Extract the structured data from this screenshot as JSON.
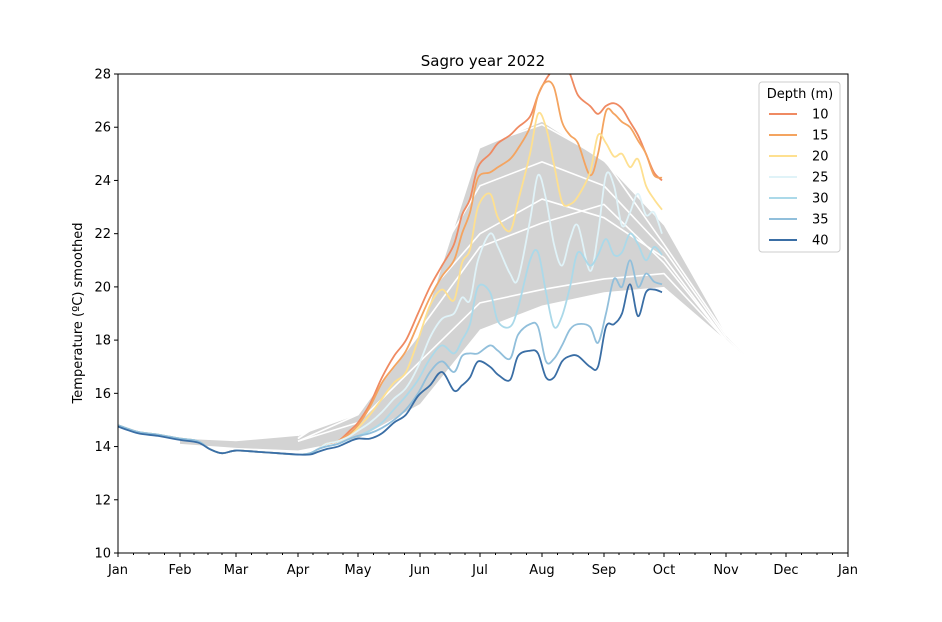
{
  "chart_data": {
    "type": "line",
    "title": "Sagro year 2022",
    "xlabel": "",
    "ylabel": "Temperature (ºC) smoothed",
    "ylim": [
      10,
      28
    ],
    "xlim": [
      0,
      365
    ],
    "x_unit": "day of year",
    "xticks": [
      {
        "label": "Jan",
        "x": 0
      },
      {
        "label": "Feb",
        "x": 31
      },
      {
        "label": "Mar",
        "x": 59
      },
      {
        "label": "Apr",
        "x": 90
      },
      {
        "label": "May",
        "x": 120
      },
      {
        "label": "Jun",
        "x": 151
      },
      {
        "label": "Jul",
        "x": 181
      },
      {
        "label": "Aug",
        "x": 212
      },
      {
        "label": "Sep",
        "x": 243
      },
      {
        "label": "Oct",
        "x": 273
      },
      {
        "label": "Nov",
        "x": 304
      },
      {
        "label": "Dec",
        "x": 334
      },
      {
        "label": "Jan",
        "x": 365
      }
    ],
    "yticks": [
      10,
      12,
      14,
      16,
      18,
      20,
      22,
      24,
      26,
      28
    ],
    "grid": false,
    "legend": {
      "title": "Depth (m)",
      "position": "top-right"
    },
    "climatology_band": {
      "color": "#d3d3d3",
      "x": [
        31,
        59,
        90,
        120,
        151,
        181,
        212,
        243,
        273,
        304,
        334
      ],
      "lower": [
        14.1,
        13.95,
        13.85,
        14.3,
        15.6,
        18.4,
        19.3,
        19.8,
        20.0,
        18.0,
        15.9
      ],
      "upper": [
        14.3,
        14.2,
        14.4,
        15.2,
        18.2,
        25.2,
        26.2,
        24.7,
        22.3,
        18.2,
        15.9
      ]
    },
    "climatology_lines": {
      "color": "#ffffff",
      "lines": [
        {
          "x": [
            90,
            120,
            151,
            181,
            212,
            243,
            273,
            304,
            334
          ],
          "y": [
            14.4,
            16.7,
            20.5,
            25.3,
            26.1,
            24.8,
            21.6,
            18.2,
            15.9
          ]
        },
        {
          "x": [
            90,
            120,
            151,
            181,
            212,
            243,
            273,
            304,
            334
          ],
          "y": [
            14.3,
            16.3,
            20.0,
            23.8,
            24.7,
            23.8,
            21.4,
            18.1,
            15.9
          ]
        },
        {
          "x": [
            90,
            120,
            151,
            181,
            212,
            243,
            273,
            304,
            334
          ],
          "y": [
            14.3,
            15.8,
            19.4,
            22.0,
            23.3,
            22.6,
            21.1,
            18.0,
            15.9
          ]
        },
        {
          "x": [
            90,
            120,
            151,
            181,
            212,
            243,
            273,
            304,
            334
          ],
          "y": [
            14.2,
            15.2,
            18.4,
            21.5,
            22.4,
            23.1,
            20.9,
            18.0,
            15.9
          ]
        },
        {
          "x": [
            90,
            120,
            151,
            181,
            212,
            243,
            273,
            304,
            334
          ],
          "y": [
            14.2,
            14.9,
            17.2,
            19.4,
            19.9,
            20.3,
            20.5,
            18.0,
            15.9
          ]
        }
      ]
    },
    "series": [
      {
        "name": "10",
        "color": "#ef8a62",
        "x": [
          0,
          10,
          20,
          31,
          40,
          46,
          52,
          59,
          70,
          80,
          90,
          96,
          100,
          104,
          110,
          116,
          120,
          126,
          132,
          138,
          144,
          150,
          156,
          162,
          168,
          172,
          176,
          180,
          186,
          190,
          196,
          200,
          206,
          210,
          214,
          218,
          222,
          226,
          230,
          236,
          240,
          244,
          248,
          252,
          256,
          260,
          264,
          268,
          272
        ],
        "y": [
          14.8,
          14.55,
          14.45,
          14.3,
          14.2,
          13.9,
          13.75,
          13.85,
          13.8,
          13.75,
          13.7,
          13.75,
          13.9,
          14.1,
          14.2,
          14.6,
          14.9,
          15.6,
          16.6,
          17.4,
          18.0,
          19.0,
          20.0,
          20.8,
          21.6,
          22.7,
          23.3,
          24.5,
          25.0,
          25.4,
          25.7,
          26.0,
          26.4,
          27.2,
          27.8,
          28.2,
          28.5,
          28.0,
          27.2,
          26.8,
          26.5,
          26.8,
          26.9,
          26.7,
          26.2,
          25.7,
          25.0,
          24.3,
          24.0
        ]
      },
      {
        "name": "15",
        "color": "#f4a460",
        "x": [
          0,
          10,
          20,
          31,
          40,
          46,
          52,
          59,
          70,
          80,
          90,
          96,
          100,
          104,
          110,
          116,
          120,
          126,
          132,
          138,
          144,
          150,
          156,
          162,
          168,
          172,
          176,
          180,
          186,
          190,
          196,
          200,
          206,
          210,
          214,
          218,
          222,
          226,
          230,
          236,
          240,
          244,
          248,
          252,
          256,
          260,
          264,
          268,
          272
        ],
        "y": [
          14.8,
          14.55,
          14.45,
          14.3,
          14.2,
          13.9,
          13.75,
          13.85,
          13.8,
          13.75,
          13.7,
          13.75,
          13.9,
          14.1,
          14.2,
          14.5,
          14.8,
          15.5,
          16.4,
          17.0,
          17.6,
          18.6,
          19.6,
          20.4,
          21.0,
          22.0,
          22.8,
          24.1,
          24.3,
          24.5,
          24.8,
          25.2,
          26.0,
          27.2,
          27.7,
          27.5,
          26.2,
          25.7,
          25.4,
          24.2,
          25.0,
          26.6,
          26.5,
          26.2,
          26.0,
          25.5,
          25.0,
          24.2,
          24.1
        ]
      },
      {
        "name": "20",
        "color": "#fee090",
        "x": [
          0,
          10,
          20,
          31,
          40,
          46,
          52,
          59,
          70,
          80,
          90,
          96,
          100,
          104,
          110,
          116,
          120,
          126,
          132,
          138,
          144,
          150,
          156,
          162,
          168,
          172,
          176,
          180,
          186,
          190,
          196,
          200,
          206,
          210,
          214,
          218,
          222,
          226,
          230,
          236,
          240,
          244,
          248,
          252,
          256,
          260,
          264,
          268,
          272
        ],
        "y": [
          14.8,
          14.55,
          14.45,
          14.3,
          14.2,
          13.9,
          13.75,
          13.85,
          13.8,
          13.75,
          13.7,
          13.75,
          13.9,
          14.1,
          14.2,
          14.4,
          14.7,
          15.2,
          15.8,
          16.4,
          16.8,
          18.0,
          19.3,
          19.9,
          19.5,
          20.9,
          21.4,
          23.0,
          23.5,
          22.6,
          22.1,
          23.2,
          25.0,
          26.5,
          26.0,
          24.6,
          23.2,
          23.1,
          23.4,
          24.3,
          25.7,
          25.4,
          24.9,
          25.0,
          24.5,
          24.8,
          23.8,
          23.3,
          22.9
        ]
      },
      {
        "name": "25",
        "color": "#e0f3f8",
        "x": [
          0,
          10,
          20,
          31,
          40,
          46,
          52,
          59,
          70,
          80,
          90,
          96,
          100,
          104,
          110,
          116,
          120,
          126,
          132,
          138,
          144,
          150,
          156,
          162,
          168,
          172,
          176,
          180,
          186,
          190,
          196,
          200,
          206,
          210,
          214,
          218,
          222,
          226,
          230,
          236,
          240,
          244,
          248,
          252,
          256,
          260,
          264,
          268,
          272
        ],
        "y": [
          14.8,
          14.55,
          14.45,
          14.3,
          14.2,
          13.9,
          13.75,
          13.85,
          13.8,
          13.75,
          13.7,
          13.75,
          13.9,
          14.1,
          14.2,
          14.4,
          14.6,
          14.9,
          15.3,
          15.8,
          16.2,
          17.0,
          18.1,
          18.8,
          19.0,
          19.6,
          19.5,
          21.0,
          22.0,
          21.5,
          20.5,
          20.3,
          22.5,
          24.2,
          23.3,
          21.6,
          20.8,
          21.8,
          22.3,
          20.6,
          22.0,
          24.2,
          23.8,
          22.3,
          22.8,
          23.5,
          22.7,
          22.8,
          22.0
        ]
      },
      {
        "name": "30",
        "color": "#abd9e9",
        "x": [
          0,
          10,
          20,
          31,
          40,
          46,
          52,
          59,
          70,
          80,
          90,
          96,
          100,
          104,
          110,
          116,
          120,
          126,
          132,
          138,
          144,
          150,
          156,
          162,
          168,
          172,
          176,
          180,
          186,
          190,
          196,
          200,
          206,
          210,
          214,
          218,
          222,
          226,
          230,
          236,
          240,
          244,
          248,
          252,
          256,
          260,
          264,
          268,
          272
        ],
        "y": [
          14.8,
          14.55,
          14.45,
          14.3,
          14.2,
          13.9,
          13.75,
          13.85,
          13.8,
          13.75,
          13.7,
          13.75,
          13.9,
          14.0,
          14.1,
          14.3,
          14.4,
          14.6,
          14.9,
          15.4,
          15.9,
          16.5,
          17.3,
          17.8,
          17.5,
          18.0,
          18.6,
          20.0,
          19.8,
          18.7,
          18.5,
          19.2,
          21.0,
          21.3,
          19.8,
          18.5,
          18.9,
          20.0,
          21.3,
          20.8,
          21.2,
          21.8,
          21.2,
          21.3,
          22.0,
          21.6,
          21.0,
          21.5,
          21.2
        ]
      },
      {
        "name": "35",
        "color": "#91bfdb",
        "x": [
          0,
          10,
          20,
          31,
          40,
          46,
          52,
          59,
          70,
          80,
          90,
          96,
          100,
          104,
          110,
          116,
          120,
          126,
          132,
          138,
          144,
          150,
          156,
          162,
          168,
          172,
          176,
          180,
          186,
          190,
          196,
          200,
          206,
          210,
          214,
          218,
          222,
          226,
          230,
          236,
          240,
          244,
          248,
          252,
          256,
          260,
          264,
          268,
          272
        ],
        "y": [
          14.8,
          14.55,
          14.45,
          14.3,
          14.2,
          13.9,
          13.75,
          13.85,
          13.8,
          13.75,
          13.7,
          13.75,
          13.9,
          14.0,
          14.1,
          14.3,
          14.4,
          14.5,
          14.7,
          15.0,
          15.4,
          16.0,
          16.8,
          17.2,
          16.8,
          17.4,
          17.5,
          17.5,
          17.8,
          17.6,
          17.3,
          18.2,
          18.6,
          18.5,
          17.2,
          17.3,
          17.8,
          18.4,
          18.6,
          18.5,
          17.9,
          19.0,
          20.3,
          20.0,
          21.0,
          20.0,
          20.5,
          20.2,
          20.1
        ]
      },
      {
        "name": "40",
        "color": "#3a6ea5",
        "x": [
          0,
          10,
          20,
          31,
          40,
          46,
          52,
          59,
          70,
          80,
          90,
          96,
          100,
          104,
          110,
          116,
          120,
          126,
          132,
          138,
          144,
          150,
          156,
          162,
          168,
          172,
          176,
          180,
          186,
          190,
          196,
          200,
          206,
          210,
          214,
          218,
          222,
          226,
          230,
          236,
          240,
          244,
          248,
          252,
          256,
          260,
          264,
          268,
          272
        ],
        "y": [
          14.75,
          14.5,
          14.4,
          14.25,
          14.15,
          13.9,
          13.75,
          13.85,
          13.8,
          13.75,
          13.7,
          13.7,
          13.8,
          13.9,
          14.0,
          14.2,
          14.3,
          14.3,
          14.5,
          14.9,
          15.2,
          15.9,
          16.3,
          16.8,
          16.1,
          16.3,
          16.6,
          17.2,
          17.0,
          16.7,
          16.5,
          17.4,
          17.6,
          17.5,
          16.6,
          16.6,
          17.2,
          17.4,
          17.4,
          17.0,
          17.0,
          18.5,
          18.6,
          19.0,
          20.1,
          18.9,
          19.8,
          19.9,
          19.8
        ]
      }
    ]
  }
}
